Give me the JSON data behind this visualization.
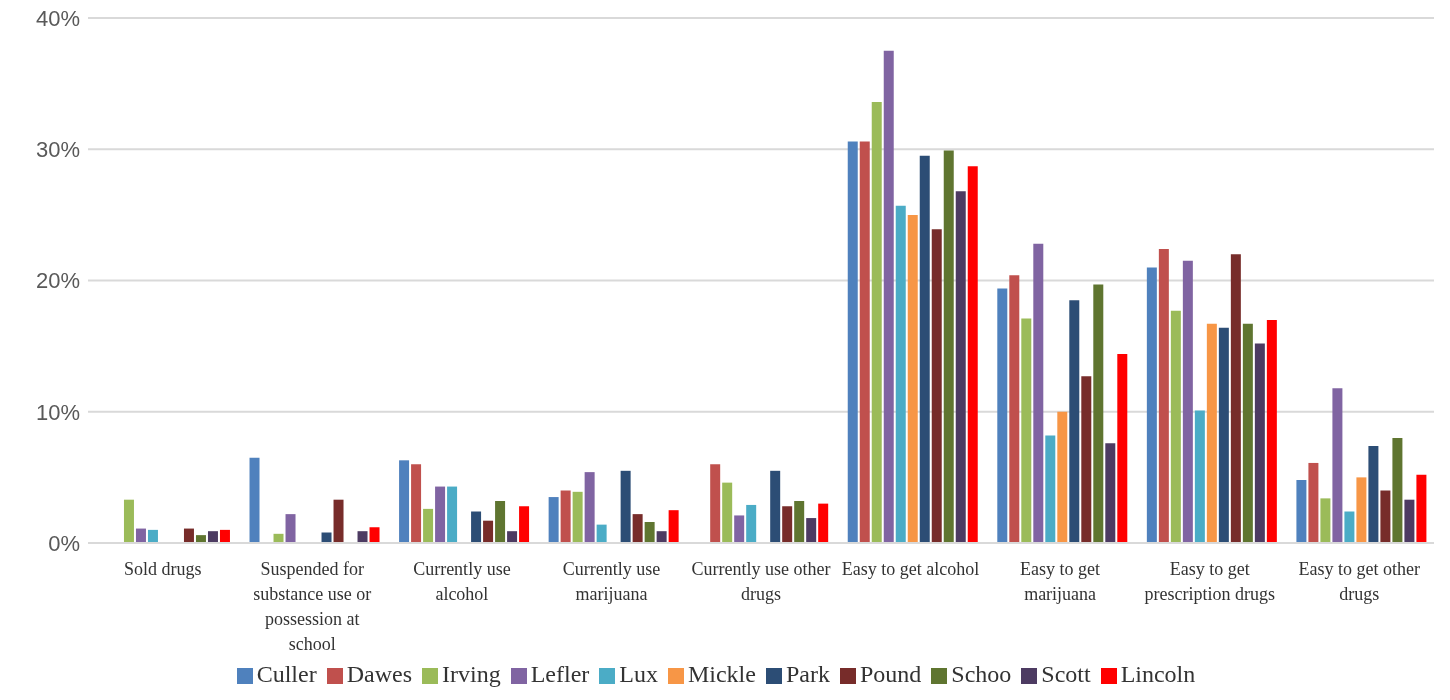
{
  "chart_data": {
    "type": "bar",
    "categories": [
      "Sold drugs",
      "Suspended for substance use or possession at school",
      "Currently use alcohol",
      "Currently use marijuana",
      "Currently use other drugs",
      "Easy to get alcohol",
      "Easy to get marijuana",
      "Easy to get prescription drugs",
      "Easy to get other drugs"
    ],
    "series": [
      {
        "name": "Culler",
        "color": "#4f81bd",
        "values": [
          0,
          6.5,
          6.3,
          3.5,
          0,
          30.6,
          19.4,
          21.0,
          4.8
        ]
      },
      {
        "name": "Dawes",
        "color": "#c0504d",
        "values": [
          0,
          0,
          6.0,
          4.0,
          6.0,
          30.6,
          20.4,
          22.4,
          6.1
        ]
      },
      {
        "name": "Irving",
        "color": "#9bbb59",
        "values": [
          3.3,
          0.7,
          2.6,
          3.9,
          4.6,
          33.6,
          17.1,
          17.7,
          3.4
        ]
      },
      {
        "name": "Lefler",
        "color": "#8064a2",
        "values": [
          1.1,
          2.2,
          4.3,
          5.4,
          2.1,
          37.5,
          22.8,
          21.5,
          11.8
        ]
      },
      {
        "name": "Lux",
        "color": "#4bacc6",
        "values": [
          1.0,
          0,
          4.3,
          1.4,
          2.9,
          25.7,
          8.2,
          10.1,
          2.4
        ]
      },
      {
        "name": "Mickle",
        "color": "#f79646",
        "values": [
          0,
          0,
          0,
          0,
          0,
          25.0,
          10.0,
          16.7,
          5.0
        ]
      },
      {
        "name": "Park",
        "color": "#2c4d75",
        "values": [
          0,
          0.8,
          2.4,
          5.5,
          5.5,
          29.5,
          18.5,
          16.4,
          7.4
        ]
      },
      {
        "name": "Pound",
        "color": "#772c2a",
        "values": [
          1.1,
          3.3,
          1.7,
          2.2,
          2.8,
          23.9,
          12.7,
          22.0,
          4.0
        ]
      },
      {
        "name": "Schoo",
        "color": "#5f7530",
        "values": [
          0.6,
          0,
          3.2,
          1.6,
          3.2,
          29.9,
          19.7,
          16.7,
          8.0
        ]
      },
      {
        "name": "Scott",
        "color": "#4d3b62",
        "values": [
          0.9,
          0.9,
          0.9,
          0.9,
          1.9,
          26.8,
          7.6,
          15.2,
          3.3
        ]
      },
      {
        "name": "Lincoln",
        "color": "#ff0000",
        "values": [
          1.0,
          1.2,
          2.8,
          2.5,
          3.0,
          28.7,
          14.4,
          17.0,
          5.2
        ]
      }
    ],
    "ylim": [
      0,
      40
    ],
    "yticks": [
      {
        "value": 0,
        "label": "0%"
      },
      {
        "value": 10,
        "label": "10%"
      },
      {
        "value": 20,
        "label": "20%"
      },
      {
        "value": 30,
        "label": "30%"
      },
      {
        "value": 40,
        "label": "40%"
      }
    ],
    "grid": "y",
    "legend": "bottom"
  }
}
